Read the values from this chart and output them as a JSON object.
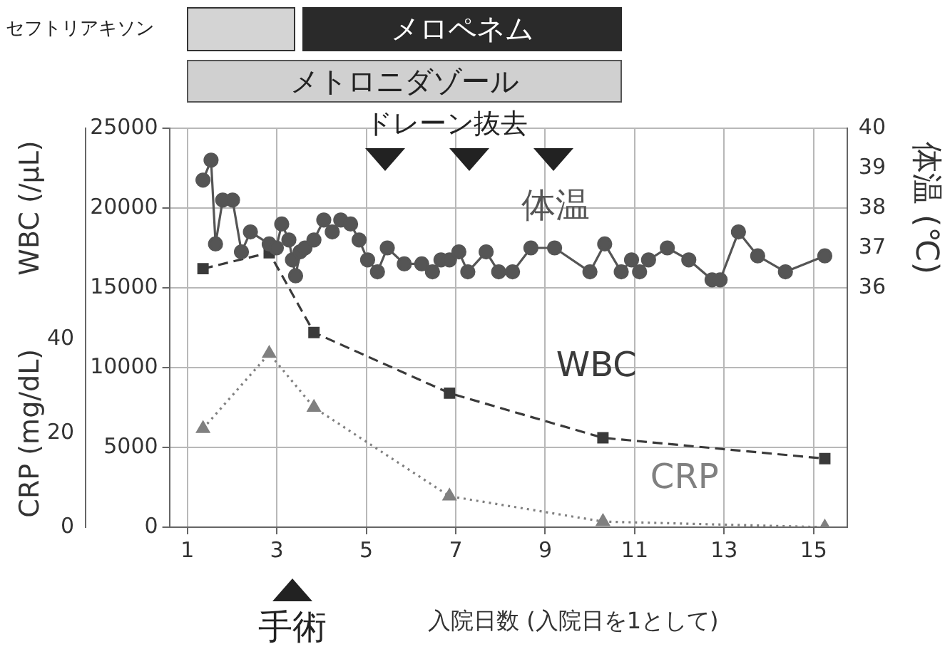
{
  "chart_data": {
    "type": "line",
    "annotations": [
      "セフトリアキソン",
      "メロペネム",
      "メトロニダゾール",
      "ドレーン抜去",
      "手術"
    ],
    "xlabel": "入院日数 (入院日を1として)",
    "ylabel": "WBC (/μL)",
    "y2label": "体温 (℃)",
    "y3label": "CRP (mg/dL)",
    "xlim": [
      0.6,
      15.75
    ],
    "xticks": [
      1,
      3,
      5,
      7,
      9,
      11,
      13,
      15
    ],
    "ylim": [
      0,
      25000
    ],
    "yticks": [
      0,
      5000,
      10000,
      15000,
      20000,
      25000
    ],
    "y2lim": [
      30,
      40
    ],
    "y2ticks": [
      36,
      37,
      38,
      39,
      40
    ],
    "y3lim": [
      0,
      85
    ],
    "y3ticks": [
      0,
      20,
      40
    ],
    "grid": true,
    "legend": false,
    "series": [
      {
        "name": "体温",
        "color": "#555555",
        "axis": "y2",
        "marker": "circle",
        "line_style": "solid",
        "x": [
          1.35,
          1.53,
          1.63,
          1.79,
          2.01,
          2.21,
          2.41,
          2.83,
          2.99,
          3.11,
          3.27,
          3.35,
          3.42,
          3.52,
          3.63,
          3.83,
          4.05,
          4.24,
          4.43,
          4.65,
          4.84,
          5.03,
          5.25,
          5.47,
          5.85,
          6.24,
          6.48,
          6.67,
          6.86,
          7.07,
          7.27,
          7.68,
          7.96,
          8.27,
          8.68,
          9.21,
          10.0,
          10.33,
          10.7,
          10.93,
          11.11,
          11.31,
          11.73,
          12.21,
          12.73,
          12.91,
          13.32,
          13.75,
          14.37,
          15.25
        ],
        "values": [
          38.7,
          39.2,
          37.1,
          38.2,
          38.2,
          36.9,
          37.4,
          37.1,
          37.0,
          37.6,
          37.2,
          36.7,
          36.3,
          36.9,
          37.0,
          37.2,
          37.7,
          37.4,
          37.7,
          37.6,
          37.2,
          36.7,
          36.4,
          37.0,
          36.6,
          36.6,
          36.4,
          36.7,
          36.7,
          36.9,
          36.4,
          36.9,
          36.4,
          36.4,
          37.0,
          37.0,
          36.4,
          37.1,
          36.4,
          36.7,
          36.4,
          36.7,
          37.0,
          36.7,
          36.2,
          36.2,
          37.4,
          36.8,
          36.4,
          36.8
        ]
      },
      {
        "name": "WBC",
        "color": "#3a3a3a",
        "axis": "y",
        "marker": "square",
        "line_style": "dashed",
        "x": [
          1.35,
          2.83,
          3.83,
          6.86,
          10.29,
          15.25
        ],
        "values": [
          16200,
          17200,
          12200,
          8400,
          5600,
          4300
        ]
      },
      {
        "name": "CRP",
        "color": "#808080",
        "axis": "y3",
        "marker": "triangle",
        "line_style": "dotted",
        "x": [
          1.35,
          2.83,
          3.83,
          6.86,
          10.29,
          15.25
        ],
        "values": [
          21,
          37,
          25.5,
          6.6,
          1.2,
          0
        ]
      }
    ]
  }
}
